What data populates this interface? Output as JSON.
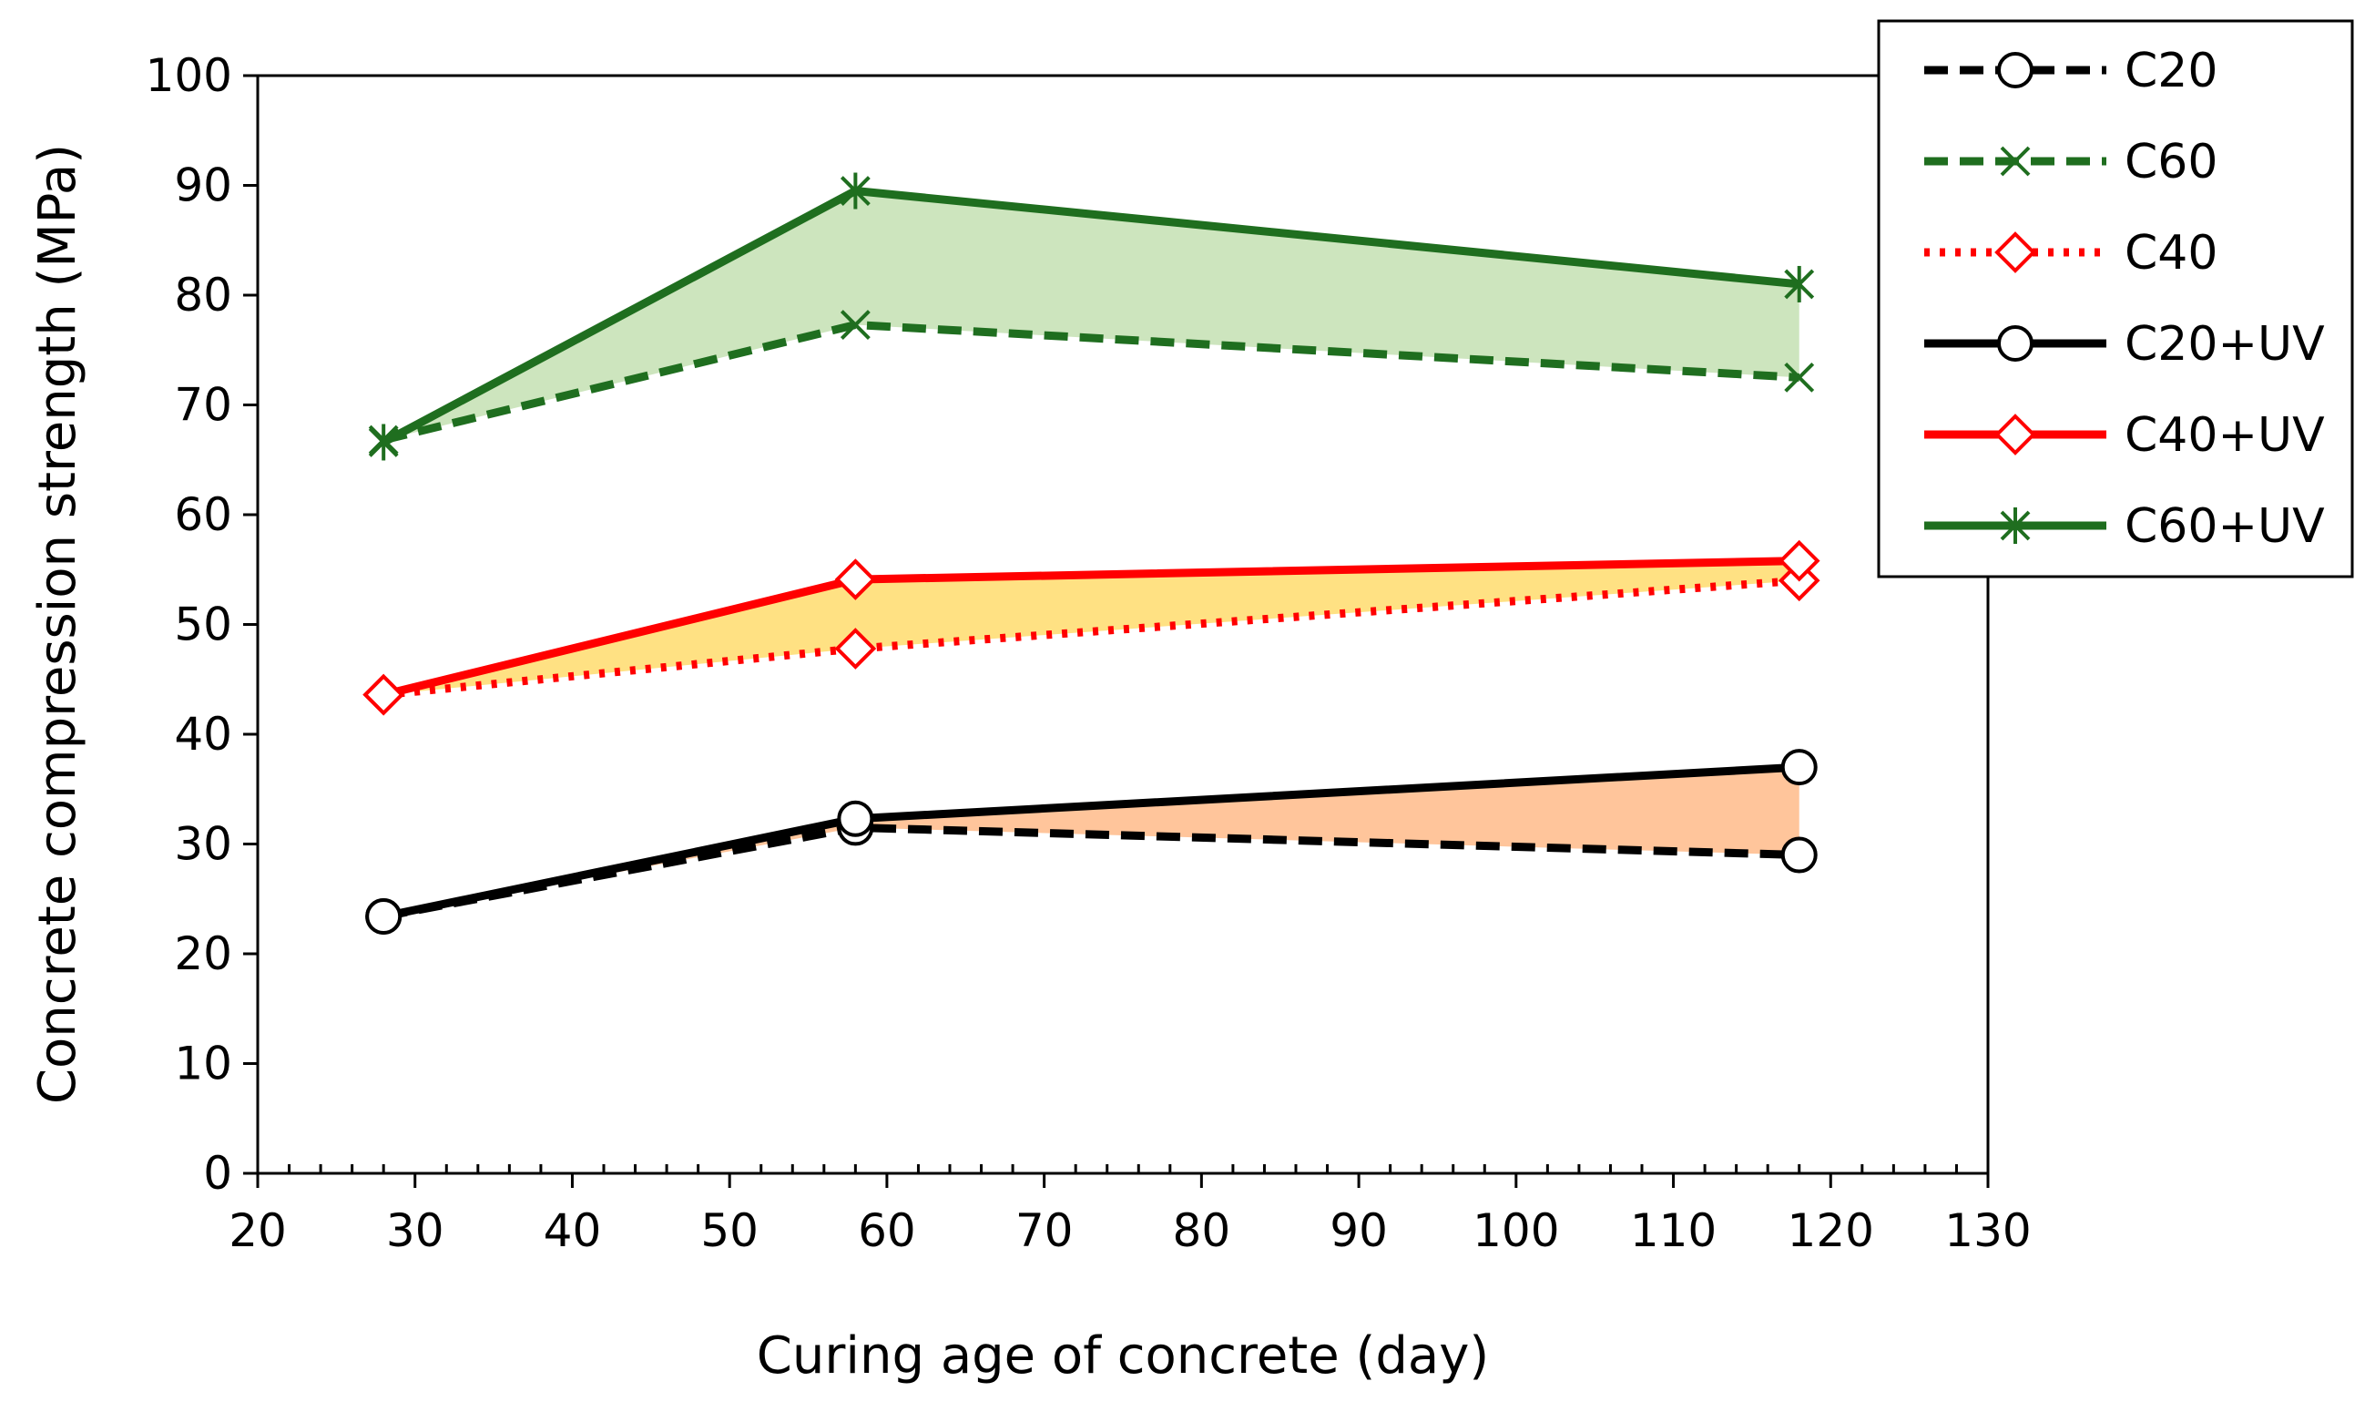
{
  "chart_data": {
    "type": "line",
    "title": "",
    "xlabel": "Curing age of concrete (day)",
    "ylabel": "Concrete compression strength (MPa)",
    "xlim": [
      20,
      130
    ],
    "ylim": [
      0,
      100
    ],
    "xticks": [
      20,
      30,
      40,
      50,
      60,
      70,
      80,
      90,
      100,
      110,
      120,
      130
    ],
    "yticks": [
      0,
      10,
      20,
      30,
      40,
      50,
      60,
      70,
      80,
      90,
      100
    ],
    "x_minor_step": 2,
    "grid": false,
    "legend_position": "top-right",
    "x": [
      28,
      58,
      118
    ],
    "series": [
      {
        "name": "C20",
        "values": [
          23.4,
          31.5,
          29.0
        ],
        "color": "#000000",
        "dash": "dashed",
        "marker": "circle"
      },
      {
        "name": "C60",
        "values": [
          66.8,
          77.3,
          72.5
        ],
        "color": "#1f6e1f",
        "dash": "dashed",
        "marker": "x"
      },
      {
        "name": "C40",
        "values": [
          43.6,
          47.8,
          54.0
        ],
        "color": "#ff0000",
        "dash": "dotted",
        "marker": "diamond"
      },
      {
        "name": "C20+UV",
        "values": [
          23.4,
          32.3,
          37.0
        ],
        "color": "#000000",
        "dash": "solid",
        "marker": "circle"
      },
      {
        "name": "C40+UV",
        "values": [
          43.6,
          54.1,
          55.8
        ],
        "color": "#ff0000",
        "dash": "solid",
        "marker": "diamond"
      },
      {
        "name": "C60+UV",
        "values": [
          66.6,
          89.5,
          81.0
        ],
        "color": "#1f6e1f",
        "dash": "solid",
        "marker": "asterisk"
      }
    ],
    "fill_bands": [
      {
        "between": [
          "C60",
          "C60+UV"
        ],
        "color": "#bcdca8"
      },
      {
        "between": [
          "C40",
          "C40+UV"
        ],
        "color": "#ffd75a"
      },
      {
        "between": [
          "C20",
          "C20+UV"
        ],
        "color": "#ffb27a"
      }
    ]
  }
}
